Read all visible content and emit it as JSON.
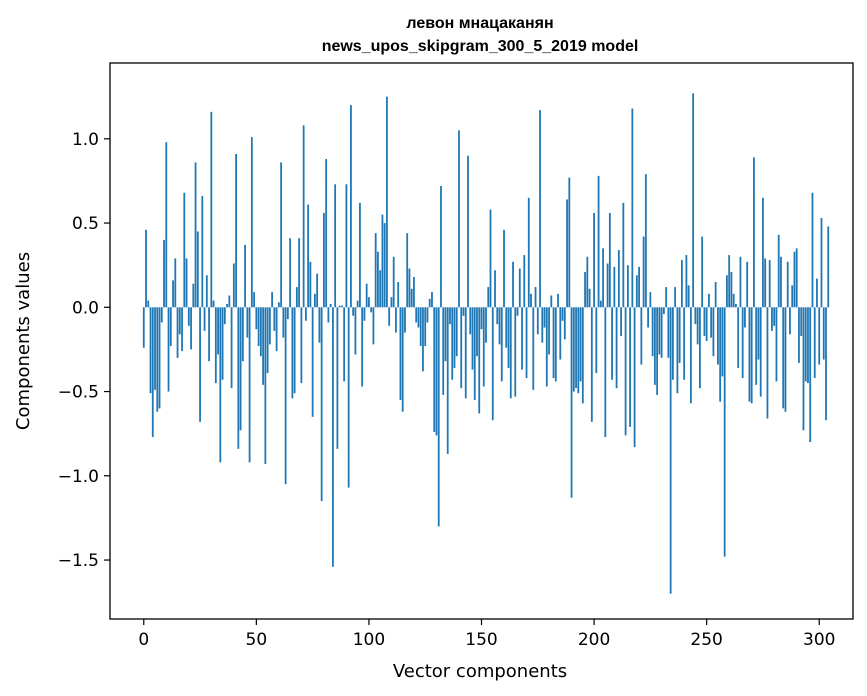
{
  "chart_data": {
    "type": "bar",
    "title_line1": "левон мнацаканян",
    "title_line2": "news_upos_skipgram_300_5_2019 model",
    "xlabel": "Vector components",
    "ylabel": "Components values",
    "xlim": [
      -15,
      315
    ],
    "ylim": [
      -1.85,
      1.45
    ],
    "xticks": [
      0,
      50,
      100,
      150,
      200,
      250,
      300
    ],
    "xtick_labels": [
      "0",
      "50",
      "100",
      "150",
      "200",
      "250",
      "300"
    ],
    "yticks": [
      -1.5,
      -1.0,
      -0.5,
      0.0,
      0.5,
      1.0
    ],
    "ytick_labels": [
      "−1.5",
      "−1.0",
      "−0.5",
      "0.0",
      "0.5",
      "1.0"
    ],
    "bar_color": "#1f77b4",
    "grid": false,
    "values": [
      -0.24,
      0.46,
      0.04,
      -0.51,
      -0.77,
      -0.49,
      -0.62,
      -0.6,
      -0.09,
      0.4,
      0.98,
      -0.5,
      -0.23,
      0.16,
      0.29,
      -0.3,
      -0.16,
      -0.26,
      0.68,
      0.29,
      -0.11,
      -0.25,
      0.14,
      0.86,
      0.45,
      -0.68,
      0.66,
      -0.14,
      0.19,
      -0.32,
      1.16,
      0.04,
      -0.45,
      -0.28,
      -0.92,
      -0.43,
      -0.1,
      0.02,
      0.07,
      -0.48,
      0.26,
      0.91,
      -0.84,
      -0.73,
      -0.32,
      0.37,
      -0.18,
      -0.92,
      1.01,
      0.09,
      -0.13,
      -0.23,
      -0.29,
      -0.46,
      -0.93,
      -0.39,
      -0.22,
      0.09,
      -0.14,
      -0.26,
      0.03,
      0.86,
      -0.18,
      -1.05,
      -0.07,
      0.41,
      -0.54,
      -0.51,
      0.12,
      0.41,
      -0.45,
      1.08,
      -0.08,
      0.61,
      0.27,
      -0.65,
      0.08,
      0.2,
      -0.21,
      -1.15,
      0.56,
      0.88,
      -0.09,
      0.02,
      -1.54,
      0.73,
      -0.84,
      0.01,
      0.01,
      -0.44,
      0.73,
      -1.07,
      1.2,
      -0.05,
      -0.28,
      0.04,
      0.62,
      -0.47,
      -0.08,
      0.14,
      0.06,
      -0.03,
      -0.22,
      0.44,
      0.33,
      0.22,
      0.55,
      0.5,
      1.25,
      -0.11,
      0.06,
      0.3,
      -0.15,
      0.15,
      -0.55,
      -0.62,
      -0.15,
      0.44,
      0.23,
      0.11,
      0.18,
      -0.09,
      -0.12,
      -0.23,
      -0.38,
      -0.23,
      -0.09,
      0.05,
      0.09,
      -0.74,
      -0.76,
      -1.3,
      0.72,
      -0.52,
      -0.32,
      -0.87,
      -0.1,
      -0.43,
      -0.36,
      -0.29,
      1.05,
      -0.48,
      -0.05,
      -0.54,
      0.9,
      -0.16,
      -0.37,
      -0.55,
      -0.29,
      -0.63,
      -0.13,
      -0.47,
      -0.21,
      0.12,
      0.58,
      -0.67,
      0.22,
      -0.1,
      -0.22,
      -0.44,
      0.46,
      -0.24,
      -0.36,
      -0.54,
      0.27,
      -0.53,
      -0.05,
      0.23,
      -0.37,
      0.31,
      -0.42,
      0.65,
      0.08,
      -0.49,
      0.12,
      -0.16,
      1.17,
      -0.21,
      -0.12,
      -0.47,
      -0.28,
      0.07,
      -0.42,
      -0.44,
      0.08,
      -0.31,
      -0.08,
      -0.19,
      0.64,
      0.77,
      -1.13,
      -0.5,
      -0.48,
      -0.51,
      -0.44,
      -0.57,
      0.21,
      0.3,
      0.11,
      -0.68,
      0.56,
      -0.39,
      0.78,
      0.04,
      0.35,
      -0.77,
      0.26,
      0.56,
      -0.43,
      0.24,
      -0.48,
      0.34,
      -0.17,
      0.62,
      -0.76,
      0.25,
      -0.71,
      1.18,
      -0.83,
      0.19,
      0.24,
      -0.34,
      0.42,
      0.79,
      -0.12,
      0.09,
      -0.29,
      -0.46,
      -0.52,
      -0.28,
      -0.3,
      -0.04,
      0.12,
      -0.3,
      -1.7,
      -0.43,
      0.12,
      -0.51,
      -0.33,
      0.28,
      -0.43,
      0.31,
      0.13,
      -0.57,
      1.27,
      -0.1,
      -0.22,
      -0.48,
      0.42,
      -0.17,
      -0.2,
      0.08,
      -0.18,
      -0.29,
      0.15,
      -0.34,
      -0.56,
      -0.41,
      -1.48,
      0.19,
      0.31,
      0.21,
      0.08,
      0.02,
      -0.36,
      0.3,
      -0.42,
      -0.12,
      0.27,
      -0.56,
      -0.57,
      0.89,
      -0.46,
      -0.31,
      -0.53,
      0.65,
      0.29,
      -0.66,
      0.28,
      -0.14,
      -0.11,
      -0.44,
      0.43,
      0.3,
      -0.6,
      -0.62,
      0.27,
      -0.16,
      0.13,
      0.33,
      0.35,
      -0.33,
      -0.17,
      -0.73,
      -0.44,
      -0.45,
      -0.8,
      0.68,
      -0.42,
      0.17,
      -0.34,
      0.53,
      -0.31,
      -0.67,
      0.48
    ]
  }
}
